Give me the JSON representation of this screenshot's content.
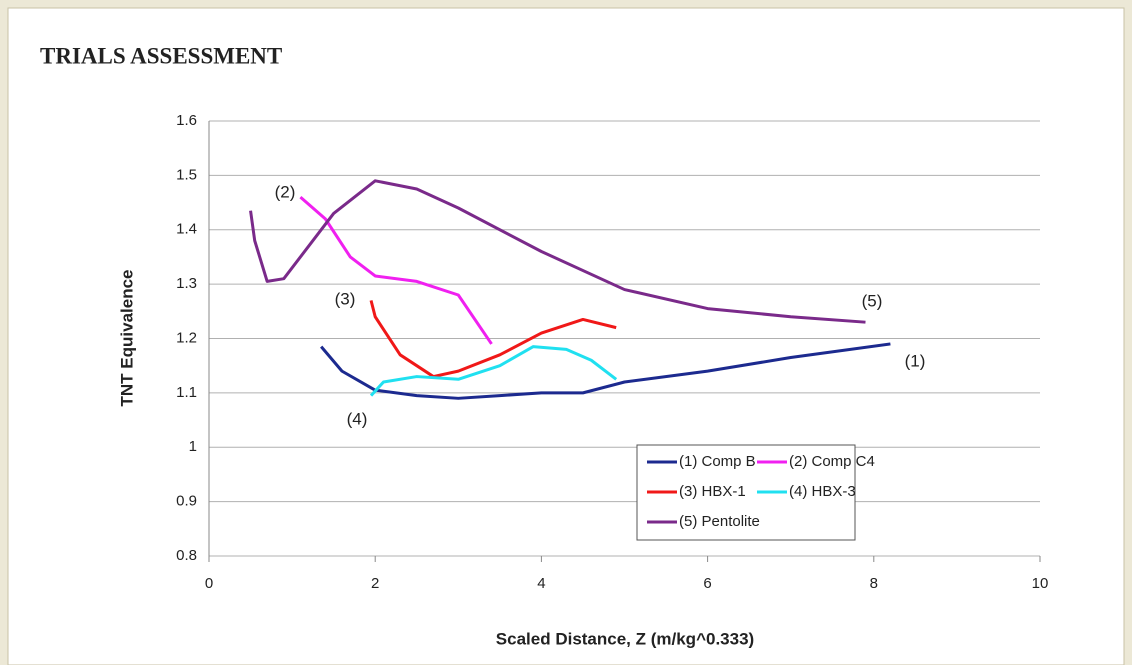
{
  "header": {
    "title": "TRIALS ASSESSMENT"
  },
  "chart_data": {
    "type": "line",
    "xlabel": "Scaled Distance, Z (m/kg^0.333)",
    "ylabel": "TNT Equivalence",
    "xlim": [
      0,
      10
    ],
    "xticks": [
      0,
      2,
      4,
      6,
      8,
      10
    ],
    "ylim": [
      0.8,
      1.6
    ],
    "yticks": [
      0.8,
      0.9,
      1,
      1.1,
      1.2,
      1.3,
      1.4,
      1.5,
      1.6
    ],
    "grid": true,
    "legend": "lower right",
    "annotations": [
      "(2)",
      "(3)",
      "(4)",
      "(5)",
      "(1)"
    ],
    "series": [
      {
        "name": "(1) Comp B",
        "color": "#1c2a8f",
        "x": [
          1.35,
          1.6,
          2,
          2.5,
          3,
          3.5,
          4,
          4.5,
          5,
          6,
          7,
          8.2
        ],
        "values": [
          1.185,
          1.14,
          1.105,
          1.095,
          1.09,
          1.095,
          1.1,
          1.1,
          1.12,
          1.14,
          1.165,
          1.19
        ]
      },
      {
        "name": "(2) Comp C4",
        "color": "#f020f0",
        "x": [
          1.1,
          1.4,
          1.7,
          2,
          2.5,
          3,
          3.4
        ],
        "values": [
          1.46,
          1.42,
          1.35,
          1.315,
          1.305,
          1.28,
          1.19
        ]
      },
      {
        "name": "(3) HBX-1",
        "color": "#f01818",
        "x": [
          1.95,
          2,
          2.3,
          2.7,
          3,
          3.5,
          4,
          4.5,
          4.9
        ],
        "values": [
          1.27,
          1.24,
          1.17,
          1.13,
          1.14,
          1.17,
          1.21,
          1.235,
          1.22
        ]
      },
      {
        "name": "(4) HBX-3",
        "color": "#20e0f0",
        "x": [
          1.95,
          2.1,
          2.5,
          3,
          3.5,
          3.9,
          4.3,
          4.6,
          4.9
        ],
        "values": [
          1.095,
          1.12,
          1.13,
          1.125,
          1.15,
          1.185,
          1.18,
          1.16,
          1.125
        ]
      },
      {
        "name": "(5) Pentolite",
        "color": "#7a2a8a",
        "x": [
          0.5,
          0.55,
          0.7,
          0.9,
          1.2,
          1.5,
          2,
          2.5,
          3,
          4,
          5,
          6,
          7,
          7.9
        ],
        "values": [
          1.435,
          1.38,
          1.305,
          1.31,
          1.37,
          1.43,
          1.49,
          1.475,
          1.44,
          1.36,
          1.29,
          1.255,
          1.24,
          1.23
        ]
      }
    ]
  }
}
